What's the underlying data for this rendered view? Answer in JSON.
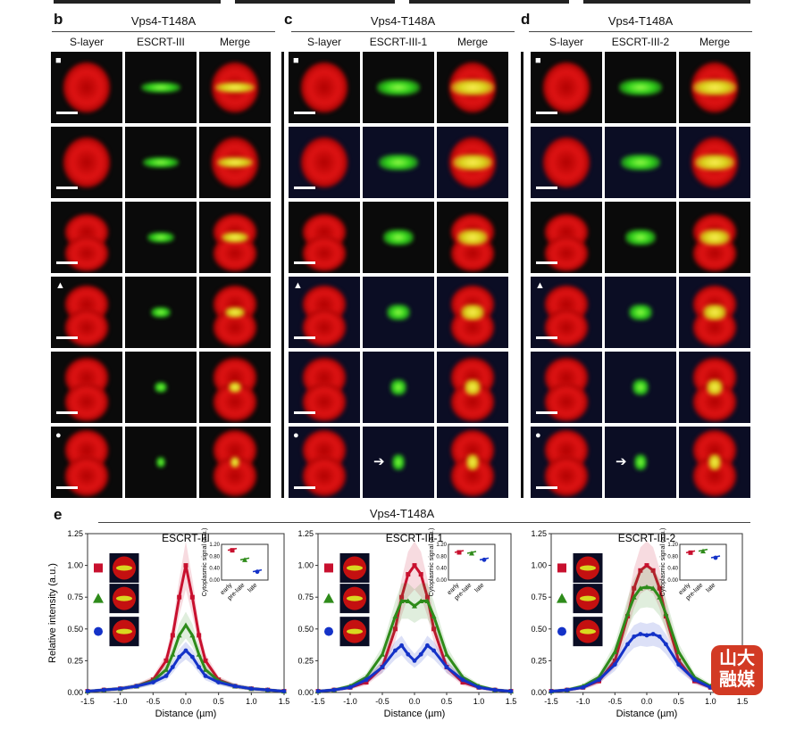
{
  "panels": {
    "b": {
      "letter": "b",
      "title": "Vps4-T148A",
      "columns": [
        "S-layer",
        "ESCRT-III",
        "Merge"
      ]
    },
    "c": {
      "letter": "c",
      "title": "Vps4-T148A",
      "columns": [
        "S-layer",
        "ESCRT-III-1",
        "Merge"
      ]
    },
    "d": {
      "letter": "d",
      "title": "Vps4-T148A",
      "columns": [
        "S-layer",
        "ESCRT-III-2",
        "Merge"
      ]
    }
  },
  "markers": {
    "square": "■",
    "triangle": "▲",
    "circle": "●",
    "arrow": "➔"
  },
  "colors": {
    "red": "#c8102e",
    "green": "#2e8b1a",
    "blue": "#1432c8",
    "bg_blue": "#0b0d24"
  },
  "panel_e": {
    "letter": "e",
    "title": "Vps4-T148A"
  },
  "watermark": {
    "text": "山大融媒"
  },
  "chart_data": [
    {
      "type": "line",
      "title": "ESCRT-III",
      "xlabel": "Distance (µm)",
      "ylabel": "Relative intensity (a.u.)",
      "xlim": [
        -1.5,
        1.5
      ],
      "ylim": [
        0,
        1.25
      ],
      "xticks": [
        "-1.5",
        "-1.0",
        "-0.5",
        "0.0",
        "0.5",
        "1.0",
        "1.5"
      ],
      "yticks": [
        "0.00",
        "0.25",
        "0.50",
        "0.75",
        "1.00",
        "1.25"
      ],
      "x": [
        -1.5,
        -1.25,
        -1.0,
        -0.75,
        -0.5,
        -0.3,
        -0.2,
        -0.1,
        0.0,
        0.1,
        0.2,
        0.3,
        0.5,
        0.75,
        1.0,
        1.25,
        1.5
      ],
      "series": [
        {
          "color": "red",
          "values": [
            0.01,
            0.02,
            0.03,
            0.05,
            0.1,
            0.25,
            0.45,
            0.75,
            1.0,
            0.75,
            0.45,
            0.25,
            0.1,
            0.05,
            0.03,
            0.02,
            0.01
          ]
        },
        {
          "color": "green",
          "values": [
            0.01,
            0.02,
            0.03,
            0.05,
            0.09,
            0.18,
            0.3,
            0.45,
            0.53,
            0.45,
            0.3,
            0.18,
            0.09,
            0.05,
            0.03,
            0.02,
            0.01
          ]
        },
        {
          "color": "blue",
          "values": [
            0.01,
            0.02,
            0.03,
            0.05,
            0.08,
            0.13,
            0.2,
            0.28,
            0.33,
            0.28,
            0.2,
            0.13,
            0.08,
            0.05,
            0.03,
            0.02,
            0.01
          ]
        }
      ],
      "inset": {
        "ylabel": "Cytoplasmic signal (a.u.)",
        "yticks": [
          "0.00",
          "0.40",
          "0.80",
          "1.20"
        ],
        "xticks": [
          "early",
          "pre-late",
          "late"
        ],
        "values": [
          1.0,
          0.68,
          0.28
        ]
      }
    },
    {
      "type": "line",
      "title": "ESCRT-III-1",
      "xlabel": "Distance (µm)",
      "ylabel": "Relative intensity (a.u.)",
      "xlim": [
        -1.5,
        1.5
      ],
      "ylim": [
        0,
        1.25
      ],
      "xticks": [
        "-1.5",
        "-1.0",
        "-0.5",
        "0.0",
        "0.5",
        "1.0",
        "1.5"
      ],
      "yticks": [
        "0.00",
        "0.25",
        "0.50",
        "0.75",
        "1.00",
        "1.25"
      ],
      "x": [
        -1.5,
        -1.25,
        -1.0,
        -0.75,
        -0.5,
        -0.3,
        -0.2,
        -0.1,
        0.0,
        0.1,
        0.2,
        0.3,
        0.5,
        0.75,
        1.0,
        1.25,
        1.5
      ],
      "series": [
        {
          "color": "red",
          "values": [
            0.01,
            0.02,
            0.04,
            0.08,
            0.2,
            0.5,
            0.75,
            0.93,
            1.0,
            0.93,
            0.75,
            0.5,
            0.2,
            0.08,
            0.04,
            0.02,
            0.01
          ]
        },
        {
          "color": "green",
          "values": [
            0.01,
            0.02,
            0.05,
            0.12,
            0.3,
            0.6,
            0.72,
            0.72,
            0.68,
            0.72,
            0.72,
            0.6,
            0.3,
            0.12,
            0.05,
            0.02,
            0.01
          ]
        },
        {
          "color": "blue",
          "values": [
            0.01,
            0.02,
            0.04,
            0.1,
            0.2,
            0.33,
            0.37,
            0.3,
            0.25,
            0.3,
            0.37,
            0.33,
            0.2,
            0.1,
            0.04,
            0.02,
            0.01
          ]
        }
      ],
      "inset": {
        "ylabel": "Cytoplasmic signal (a.u.)",
        "yticks": [
          "0.00",
          "0.40",
          "0.80",
          "1.20"
        ],
        "xticks": [
          "early",
          "pre-late",
          "late"
        ],
        "values": [
          0.93,
          0.9,
          0.68
        ]
      }
    },
    {
      "type": "line",
      "title": "ESCRT-III-2",
      "xlabel": "Distance (µm)",
      "ylabel": "Relative intensity (a.u.)",
      "xlim": [
        -1.5,
        1.5
      ],
      "ylim": [
        0,
        1.25
      ],
      "xticks": [
        "-1.5",
        "-1.0",
        "-0.5",
        "0.0",
        "0.5",
        "1.0",
        "1.5"
      ],
      "yticks": [
        "0.00",
        "0.25",
        "0.50",
        "0.75",
        "1.00",
        "1.25"
      ],
      "x": [
        -1.5,
        -1.25,
        -1.0,
        -0.75,
        -0.5,
        -0.3,
        -0.2,
        -0.1,
        0.0,
        0.1,
        0.2,
        0.3,
        0.5,
        0.75,
        1.0,
        1.25,
        1.5
      ],
      "series": [
        {
          "color": "red",
          "values": [
            0.01,
            0.02,
            0.04,
            0.09,
            0.25,
            0.6,
            0.82,
            0.96,
            1.0,
            0.96,
            0.82,
            0.6,
            0.25,
            0.09,
            0.04,
            0.02,
            0.01
          ]
        },
        {
          "color": "green",
          "values": [
            0.01,
            0.02,
            0.05,
            0.12,
            0.32,
            0.62,
            0.75,
            0.82,
            0.83,
            0.82,
            0.75,
            0.62,
            0.32,
            0.12,
            0.05,
            0.02,
            0.01
          ]
        },
        {
          "color": "blue",
          "values": [
            0.01,
            0.02,
            0.04,
            0.1,
            0.22,
            0.38,
            0.44,
            0.46,
            0.45,
            0.46,
            0.44,
            0.38,
            0.22,
            0.1,
            0.04,
            0.02,
            0.01
          ]
        }
      ],
      "inset": {
        "ylabel": "Cytoplasmic signal (a.u.)",
        "yticks": [
          "0.00",
          "0.40",
          "0.80",
          "1.20"
        ],
        "xticks": [
          "early",
          "pre-late",
          "late"
        ],
        "values": [
          0.92,
          0.97,
          0.75
        ]
      }
    }
  ]
}
